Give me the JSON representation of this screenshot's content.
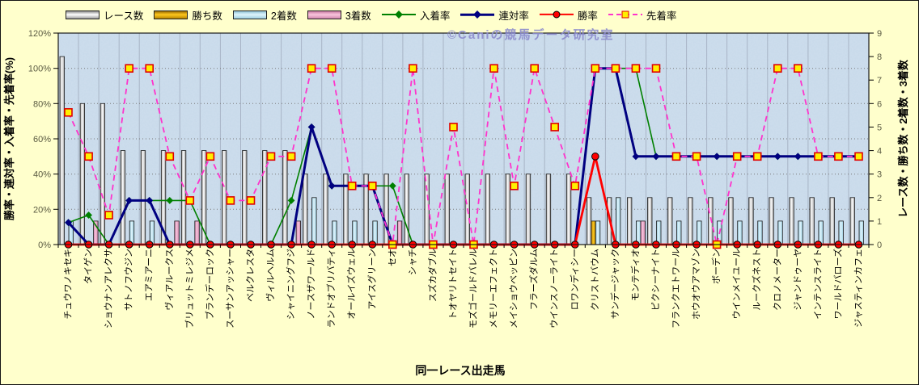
{
  "watermark": "©Caniの競馬データ研究室",
  "axes": {
    "x_title": "同一レース出走馬",
    "left_title": "勝率・連対率・入着率・先着率(%)",
    "right_title": "レース数・勝ち数・2着数・3着数",
    "left_ticks": [
      "0%",
      "20%",
      "40%",
      "60%",
      "80%",
      "100%",
      "120%"
    ],
    "left_tick_values": [
      0,
      20,
      40,
      60,
      80,
      100,
      120
    ],
    "right_ticks": [
      "0",
      "1",
      "2",
      "3",
      "4",
      "5",
      "6",
      "7",
      "8",
      "9"
    ],
    "right_tick_values": [
      0,
      1,
      2,
      3,
      4,
      5,
      6,
      7,
      8,
      9
    ]
  },
  "colors": {
    "page_bg": "#FFFFCC",
    "plot_bg": "#C7D9EA",
    "grid_h": "#7a7a7a",
    "grid_v": "#A8B4C6",
    "tick_text": "#5a5a42",
    "axis_line": "#1a1a1a",
    "watermark": "#8c8ccd"
  },
  "legend": [
    {
      "id": "races",
      "label": "レース数",
      "swatch": "bar"
    },
    {
      "id": "wins",
      "label": "勝ち数",
      "swatch": "bar"
    },
    {
      "id": "seconds",
      "label": "2着数",
      "swatch": "bar"
    },
    {
      "id": "thirds",
      "label": "3着数",
      "swatch": "bar"
    },
    {
      "id": "place-rate",
      "label": "入着率",
      "swatch": "line",
      "marker": "diamond"
    },
    {
      "id": "quinella-rate",
      "label": "連対率",
      "swatch": "line",
      "marker": "diamond"
    },
    {
      "id": "win-rate",
      "label": "勝率",
      "swatch": "line",
      "marker": "circle"
    },
    {
      "id": "finish-first-rate",
      "label": "先着率",
      "swatch": "line",
      "marker": "square"
    }
  ],
  "chart_data": {
    "type": "combo-bar-line",
    "title": "",
    "xlabel": "同一レース出走馬",
    "ylabel_left": "勝率・連対率・入着率・先着率(%)",
    "ylabel_right": "レース数・勝ち数・2着数・3着数",
    "left_axis_range": [
      0,
      120
    ],
    "right_axis_range": [
      0,
      9
    ],
    "grid": true,
    "legend_position": "top",
    "categories": [
      "チュウワノキセキ",
      "タイゲン",
      "ショウナンアレクサ",
      "サトノフウジン",
      "エアミアーニ",
      "ヴィアルークス",
      "ブリュットミレジメ",
      "ブランデーロック",
      "スーサンアッシャー",
      "ベルクレスタ",
      "ヴィルヘルム",
      "シャイニングフジ",
      "ノースザワールド",
      "ランドオブリバティ",
      "オールイズウェル",
      "アイスグリーン",
      "セオ",
      "シャチ",
      "スズカダブル",
      "トオヤリトセイト",
      "モズゴールドバレル",
      "メモリーエフェクト",
      "メイショウベッピン",
      "フラーズダルム",
      "ウインスノーライト",
      "ロワンディシー",
      "クリストバウム",
      "サンデージャック",
      "モンテディオ",
      "ピクシーナイト",
      "フランクエトワール",
      "ホウオウアマゾン",
      "ボーデン",
      "ウインメイユール",
      "ルークズネスト",
      "クロノメーター",
      "ジャンドゥーヤ",
      "インテンスライト",
      "ワールドバローズ",
      "ジャスティンカフェ"
    ],
    "bar_colors": {
      "races": [
        "#8f8f8f",
        "#ffffff",
        "#9f9f9f"
      ],
      "seconds": [
        "#8fc2d6",
        "#dff4fc",
        "#9fd0e2"
      ],
      "wins": [
        "#9a6b00",
        "#ffc91e",
        "#b88600"
      ],
      "thirds": [
        "#c878a2",
        "#f9c6dd",
        "#d287ae"
      ]
    },
    "series": [
      {
        "id": "races",
        "name": "レース数",
        "type": "bar",
        "axis": "right",
        "values": [
          8,
          6,
          6,
          4,
          4,
          4,
          4,
          4,
          4,
          4,
          4,
          4,
          3,
          3,
          3,
          3,
          3,
          3,
          3,
          3,
          3,
          3,
          3,
          3,
          3,
          3,
          2,
          2,
          2,
          2,
          2,
          2,
          2,
          2,
          2,
          2,
          2,
          2,
          2,
          2
        ]
      },
      {
        "id": "wins",
        "name": "勝ち数",
        "type": "bar",
        "axis": "right",
        "values": [
          0,
          0,
          0,
          0,
          0,
          0,
          0,
          0,
          0,
          0,
          0,
          0,
          0,
          0,
          0,
          0,
          0,
          0,
          0,
          0,
          0,
          0,
          0,
          0,
          0,
          0,
          1,
          0,
          0,
          0,
          0,
          0,
          0,
          0,
          0,
          0,
          0,
          0,
          0,
          0
        ]
      },
      {
        "id": "seconds",
        "name": "2着数",
        "type": "bar",
        "axis": "right",
        "values": [
          1,
          0,
          0,
          1,
          1,
          0,
          0,
          0,
          0,
          0,
          0,
          0,
          2,
          1,
          1,
          1,
          0,
          0,
          0,
          0,
          0,
          0,
          0,
          0,
          0,
          0,
          1,
          2,
          1,
          1,
          1,
          1,
          1,
          1,
          1,
          1,
          1,
          1,
          1,
          1
        ]
      },
      {
        "id": "thirds",
        "name": "3着数",
        "type": "bar",
        "axis": "right",
        "values": [
          0,
          1,
          0,
          0,
          0,
          1,
          1,
          0,
          0,
          0,
          0,
          1,
          0,
          0,
          0,
          0,
          1,
          0,
          0,
          0,
          0,
          0,
          0,
          0,
          0,
          0,
          0,
          0,
          1,
          0,
          0,
          0,
          0,
          0,
          0,
          0,
          0,
          0,
          0,
          0
        ]
      },
      {
        "id": "place-rate",
        "name": "入着率",
        "type": "line",
        "axis": "left",
        "color": "#008000",
        "width": 1.6,
        "marker": "diamond",
        "values": [
          12.5,
          16.7,
          0,
          25,
          25,
          25,
          25,
          0,
          0,
          0,
          0,
          25,
          66.7,
          33.3,
          33.3,
          33.3,
          33.3,
          0,
          0,
          0,
          0,
          0,
          0,
          0,
          0,
          0,
          100,
          100,
          100,
          50,
          50,
          50,
          50,
          50,
          50,
          50,
          50,
          50,
          50,
          50
        ]
      },
      {
        "id": "quinella-rate",
        "name": "連対率",
        "type": "line",
        "axis": "left",
        "color": "#000080",
        "width": 3,
        "marker": "diamond",
        "values": [
          12.5,
          0,
          0,
          25,
          25,
          0,
          0,
          0,
          0,
          0,
          0,
          0,
          66.7,
          33.3,
          33.3,
          33.3,
          0,
          0,
          0,
          0,
          0,
          0,
          0,
          0,
          0,
          0,
          100,
          100,
          50,
          50,
          50,
          50,
          50,
          50,
          50,
          50,
          50,
          50,
          50,
          50
        ]
      },
      {
        "id": "win-rate",
        "name": "勝率",
        "type": "line",
        "axis": "left",
        "color": "#FF0000",
        "width": 2.8,
        "marker": "circle",
        "values": [
          0,
          0,
          0,
          0,
          0,
          0,
          0,
          0,
          0,
          0,
          0,
          0,
          0,
          0,
          0,
          0,
          0,
          0,
          0,
          0,
          0,
          0,
          0,
          0,
          0,
          0,
          50,
          0,
          0,
          0,
          0,
          0,
          0,
          0,
          0,
          0,
          0,
          0,
          0,
          0
        ]
      },
      {
        "id": "finish-first-rate",
        "name": "先着率",
        "type": "line",
        "axis": "left",
        "color": "#FF33CC",
        "width": 1.8,
        "dashed": true,
        "marker": "square",
        "marker_fill": "#FFF000",
        "marker_stroke": "#E00000",
        "values": [
          75,
          50,
          16.7,
          100,
          100,
          50,
          25,
          50,
          25,
          25,
          50,
          50,
          100,
          100,
          33.3,
          33.3,
          0,
          100,
          0,
          66.7,
          0,
          100,
          33.3,
          100,
          66.7,
          33.3,
          100,
          100,
          100,
          100,
          50,
          50,
          0,
          50,
          50,
          100,
          100,
          50,
          50,
          50
        ]
      }
    ]
  }
}
